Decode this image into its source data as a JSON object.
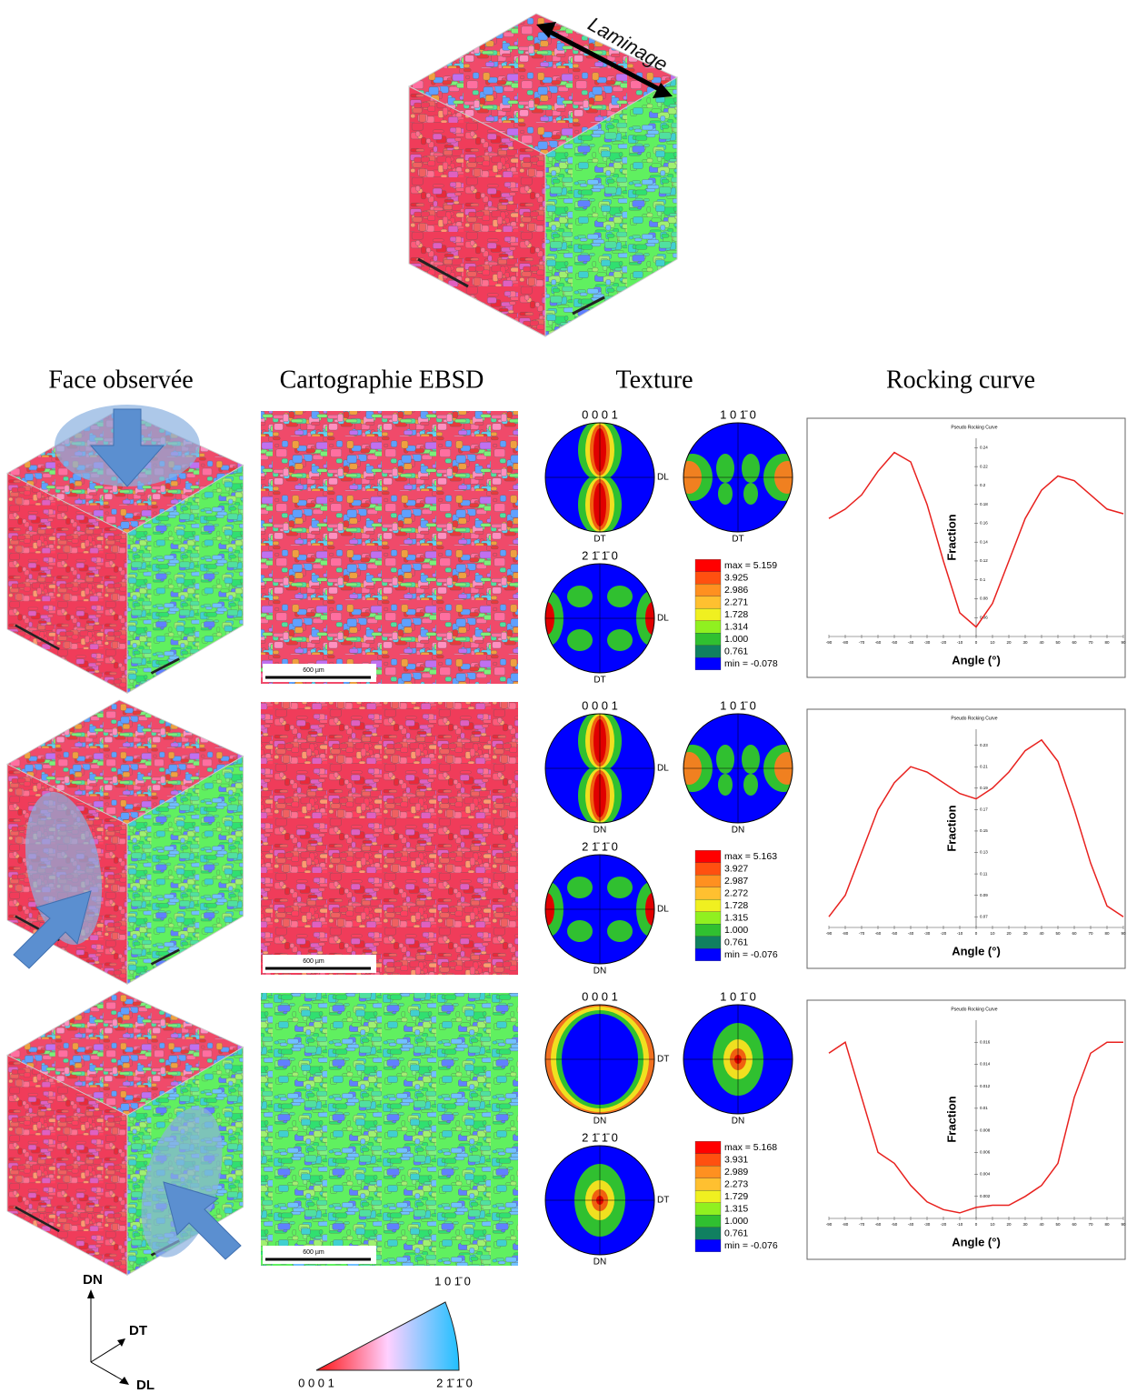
{
  "top": {
    "label": "Laminage"
  },
  "headers": [
    "Face observée",
    "Cartographie EBSD",
    "Texture",
    "Rocking curve"
  ],
  "rows": [
    {
      "scale_bar": "600 µm",
      "pole_figures": [
        {
          "title": "0 0 0 1",
          "bottom": "DT",
          "right": "DL"
        },
        {
          "title": "1 0 1̄ 0",
          "bottom": "DT"
        },
        {
          "title": "2 1̄ 1̄ 0",
          "bottom": "DT",
          "right": "DL"
        }
      ],
      "legend": [
        "max = 5.159",
        "3.925",
        "2.986",
        "2.271",
        "1.728",
        "1.314",
        "1.000",
        "0.761",
        "min = -0.078"
      ],
      "rocking_curve": {
        "type": "line",
        "title": "Pseudo Rocking Curve",
        "x_label": "Angle (°)",
        "y_label": "Fraction",
        "color": "#e8211e",
        "x": [
          -90,
          -80,
          -70,
          -60,
          -50,
          -40,
          -30,
          -20,
          -10,
          0,
          10,
          20,
          30,
          40,
          50,
          60,
          70,
          80,
          90
        ],
        "values": [
          0.165,
          0.175,
          0.19,
          0.215,
          0.235,
          0.225,
          0.18,
          0.12,
          0.065,
          0.05,
          0.075,
          0.12,
          0.165,
          0.195,
          0.21,
          0.205,
          0.19,
          0.175,
          0.17
        ],
        "xlim": [
          -90,
          90
        ],
        "xticks": [
          -90,
          -80,
          -70,
          -60,
          -50,
          -40,
          -30,
          -20,
          -10,
          0,
          10,
          20,
          30,
          40,
          50,
          60,
          70,
          80,
          90
        ],
        "ylim": [
          0.04,
          0.25
        ],
        "yticks": [
          0.06,
          0.08,
          0.1,
          0.12,
          0.14,
          0.16,
          0.18,
          0.2,
          0.22,
          0.24
        ]
      }
    },
    {
      "scale_bar": "600 µm",
      "pole_figures": [
        {
          "title": "0 0 0 1",
          "bottom": "DN",
          "right": "DL"
        },
        {
          "title": "1 0 1̄ 0",
          "bottom": "DN"
        },
        {
          "title": "2 1̄ 1̄ 0",
          "bottom": "DN",
          "right": "DL"
        }
      ],
      "legend": [
        "max = 5.163",
        "3.927",
        "2.987",
        "2.272",
        "1.728",
        "1.315",
        "1.000",
        "0.761",
        "min = -0.076"
      ],
      "rocking_curve": {
        "type": "line",
        "title": "Pseudo Rocking Curve",
        "x_label": "Angle (°)",
        "y_label": "Fraction",
        "color": "#e8211e",
        "x": [
          -90,
          -80,
          -70,
          -60,
          -50,
          -40,
          -30,
          -20,
          -10,
          0,
          10,
          20,
          30,
          40,
          50,
          60,
          70,
          80,
          90
        ],
        "values": [
          0.07,
          0.09,
          0.13,
          0.17,
          0.195,
          0.21,
          0.205,
          0.195,
          0.185,
          0.18,
          0.19,
          0.205,
          0.225,
          0.235,
          0.215,
          0.17,
          0.12,
          0.08,
          0.07
        ],
        "xlim": [
          -90,
          90
        ],
        "xticks": [
          -90,
          -80,
          -70,
          -60,
          -50,
          -40,
          -30,
          -20,
          -10,
          0,
          10,
          20,
          30,
          40,
          50,
          60,
          70,
          80,
          90
        ],
        "ylim": [
          0.06,
          0.245
        ],
        "yticks": [
          0.07,
          0.09,
          0.11,
          0.13,
          0.15,
          0.17,
          0.19,
          0.21,
          0.23
        ]
      }
    },
    {
      "scale_bar": "600 µm",
      "pole_figures": [
        {
          "title": "0 0 0 1",
          "bottom": "DN",
          "right": "DT"
        },
        {
          "title": "1 0 1̄ 0",
          "bottom": "DN"
        },
        {
          "title": "2 1̄ 1̄ 0",
          "bottom": "DN",
          "right": "DT"
        }
      ],
      "legend": [
        "max = 5.168",
        "3.931",
        "2.989",
        "2.273",
        "1.729",
        "1.315",
        "1.000",
        "0.761",
        "min = -0.076"
      ],
      "rocking_curve": {
        "type": "line",
        "title": "Pseudo Rocking Curve",
        "x_label": "Angle (°)",
        "y_label": "Fraction",
        "color": "#e8211e",
        "x": [
          -90,
          -80,
          -70,
          -60,
          -50,
          -40,
          -30,
          -20,
          -10,
          0,
          10,
          20,
          30,
          40,
          50,
          60,
          70,
          80,
          90
        ],
        "values": [
          0.015,
          0.016,
          0.011,
          0.006,
          0.005,
          0.003,
          0.0015,
          0.0008,
          0.0005,
          0.001,
          0.0012,
          0.0012,
          0.002,
          0.003,
          0.005,
          0.011,
          0.015,
          0.016,
          0.016
        ],
        "xlim": [
          -90,
          90
        ],
        "xticks": [
          -90,
          -80,
          -70,
          -60,
          -50,
          -40,
          -30,
          -20,
          -10,
          0,
          10,
          20,
          30,
          40,
          50,
          60,
          70,
          80,
          90
        ],
        "ylim": [
          0,
          0.018
        ],
        "yticks": [
          0.002,
          0.004,
          0.006,
          0.008,
          0.01,
          0.012,
          0.014,
          0.016
        ]
      }
    }
  ],
  "axes": {
    "labels": [
      "DN",
      "DT",
      "DL"
    ]
  },
  "ipf": {
    "top": "1 0 1̄ 0",
    "left": "0 0 0 1",
    "right": "2 1̄ 1̄ 0"
  }
}
